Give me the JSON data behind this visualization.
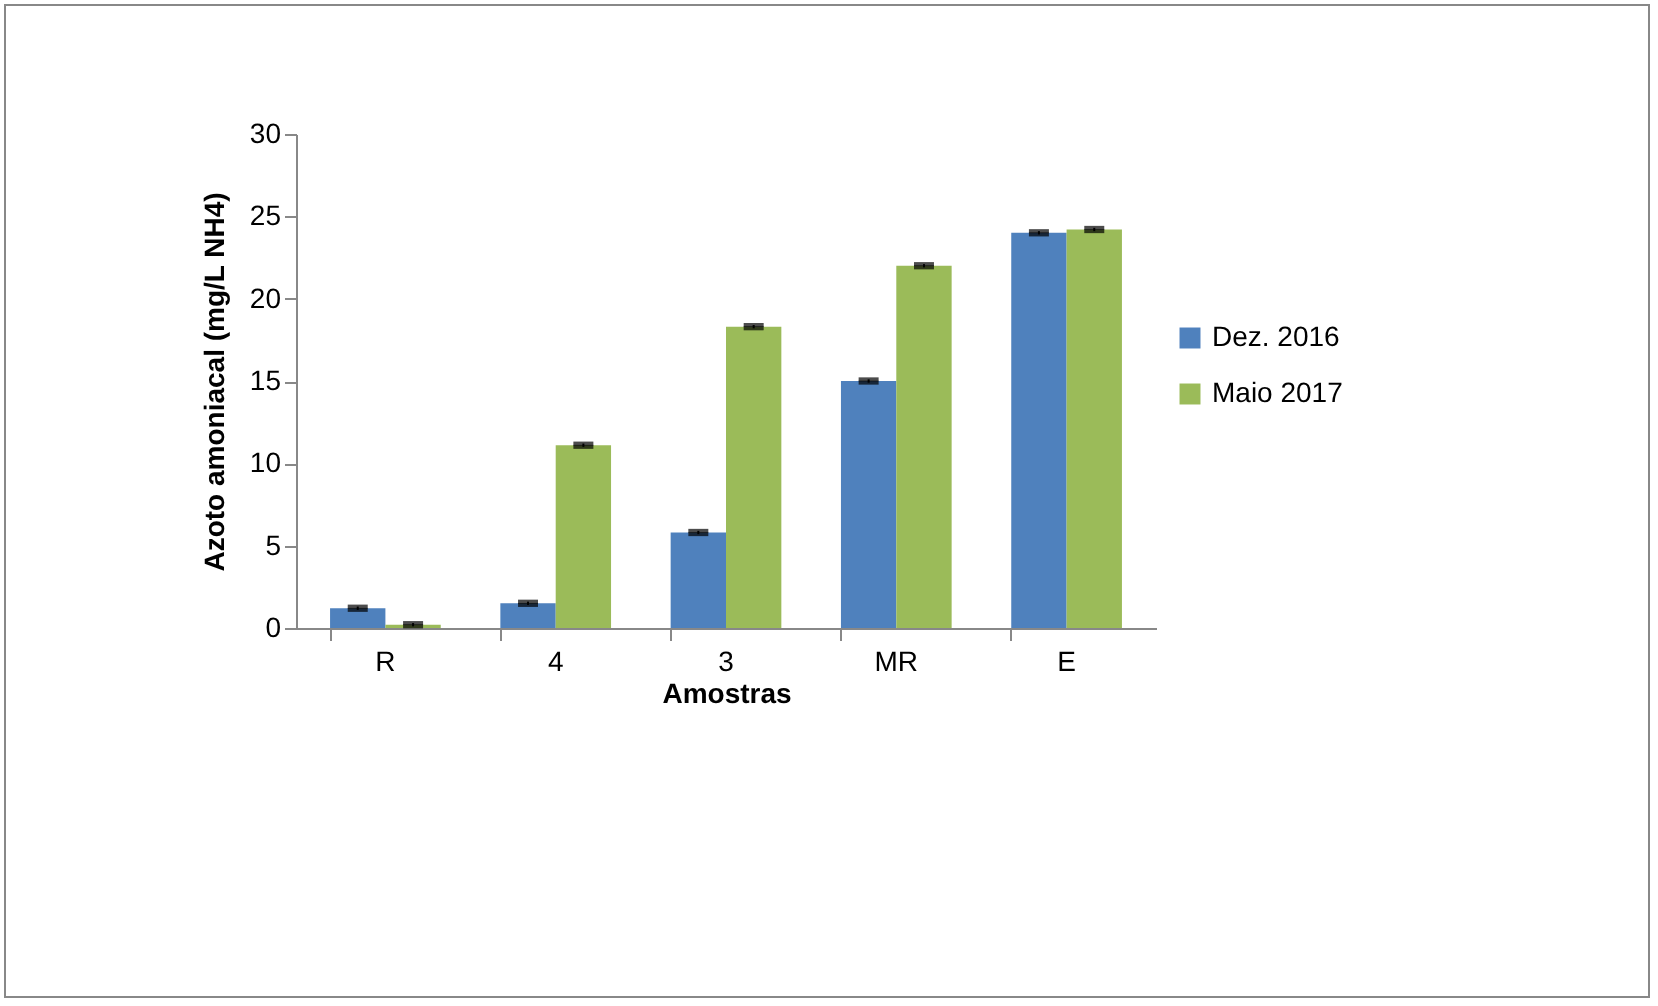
{
  "chart_data": {
    "type": "bar",
    "xlabel": "Amostras",
    "ylabel": "Azoto amoniacal (mg/L NH4)",
    "categories": [
      "R",
      "4",
      "3",
      "MR",
      "E"
    ],
    "series": [
      {
        "name": "Dez. 2016",
        "color": "#4f81bd",
        "values": [
          1.2,
          1.5,
          5.8,
          15.0,
          24.0
        ],
        "errors": [
          0.1,
          0.1,
          0.1,
          0.1,
          0.1
        ]
      },
      {
        "name": "Maio 2017",
        "color": "#9bbb59",
        "values": [
          0.2,
          11.1,
          18.3,
          22.0,
          24.2
        ],
        "errors": [
          0.1,
          0.1,
          0.1,
          0.1,
          0.1
        ]
      }
    ],
    "ylim": [
      0,
      30
    ],
    "yticks": [
      0,
      5,
      10,
      15,
      20,
      25,
      30
    ],
    "grid": false,
    "legend": "right"
  }
}
